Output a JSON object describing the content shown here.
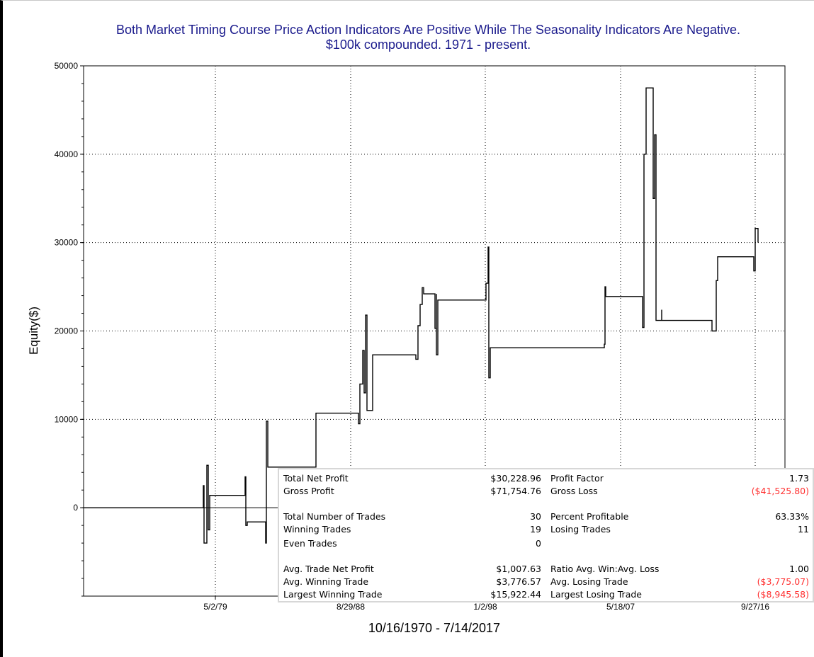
{
  "chart_data": {
    "type": "line",
    "title": "Both Market Timing Course Price Action Indicators Are Positive While The Seasonality Indicators Are Negative.",
    "subtitle": "$100k compounded. 1971 - present.",
    "ylabel": "Equity($)",
    "xlabel": "10/16/1970 - 7/14/2017",
    "ylim": [
      -10000,
      50000
    ],
    "y_ticks": [
      0,
      10000,
      20000,
      30000,
      40000,
      50000
    ],
    "x_tick_labels": [
      "5/2/79",
      "8/29/88",
      "1/2/98",
      "5/18/07",
      "9/27/16"
    ],
    "grid": true,
    "line_color": "#000000",
    "series": [
      {
        "values": [
          0,
          0,
          2500,
          -4000,
          4800,
          -2500,
          1400,
          1400,
          3500,
          -2000,
          -1600,
          -1600,
          -4000,
          9800,
          4600,
          4600,
          10700,
          10700,
          9500,
          14000,
          17800,
          13000,
          21800,
          11000,
          17300,
          17300,
          17300,
          16800,
          20600,
          23000,
          24900,
          24200,
          20300,
          24200,
          17300,
          23500,
          23500,
          23500,
          25400,
          29500,
          14700,
          18100,
          18100,
          18100,
          18100,
          18500,
          25000,
          23900,
          23900,
          23900,
          20400,
          40000,
          47500,
          35000,
          42200,
          21200,
          22400,
          21200,
          21200,
          21200,
          20000,
          25700,
          28400,
          28400,
          26800,
          31600,
          30000
        ]
      }
    ]
  },
  "stats": {
    "rows": [
      {
        "left_label": "Total Net Profit",
        "left_value": "$30,228.96",
        "right_label": "Profit Factor",
        "right_value": "1.73",
        "right_negative": false
      },
      {
        "left_label": "Gross Profit",
        "left_value": "$71,754.76",
        "right_label": "Gross Loss",
        "right_value": "($41,525.80)",
        "right_negative": true
      },
      {
        "left_label": "Total Number of Trades",
        "left_value": "30",
        "right_label": "Percent Profitable",
        "right_value": "63.33%",
        "right_negative": false
      },
      {
        "left_label": "Winning Trades",
        "left_value": "19",
        "right_label": "Losing Trades",
        "right_value": "11",
        "right_negative": false
      },
      {
        "left_label": "Even Trades",
        "left_value": "0",
        "right_label": "",
        "right_value": "",
        "right_negative": false
      },
      {
        "left_label": "Avg. Trade Net Profit",
        "left_value": "$1,007.63",
        "right_label": "Ratio Avg. Win:Avg. Loss",
        "right_value": "1.00",
        "right_negative": false
      },
      {
        "left_label": "Avg. Winning Trade",
        "left_value": "$3,776.57",
        "right_label": "Avg. Losing Trade",
        "right_value": "($3,775.07)",
        "right_negative": true
      },
      {
        "left_label": "Largest Winning Trade",
        "left_value": "$15,922.44",
        "right_label": "Largest Losing Trade",
        "right_value": "($8,945.58)",
        "right_negative": true
      }
    ],
    "negative_color": "#ff3030"
  }
}
